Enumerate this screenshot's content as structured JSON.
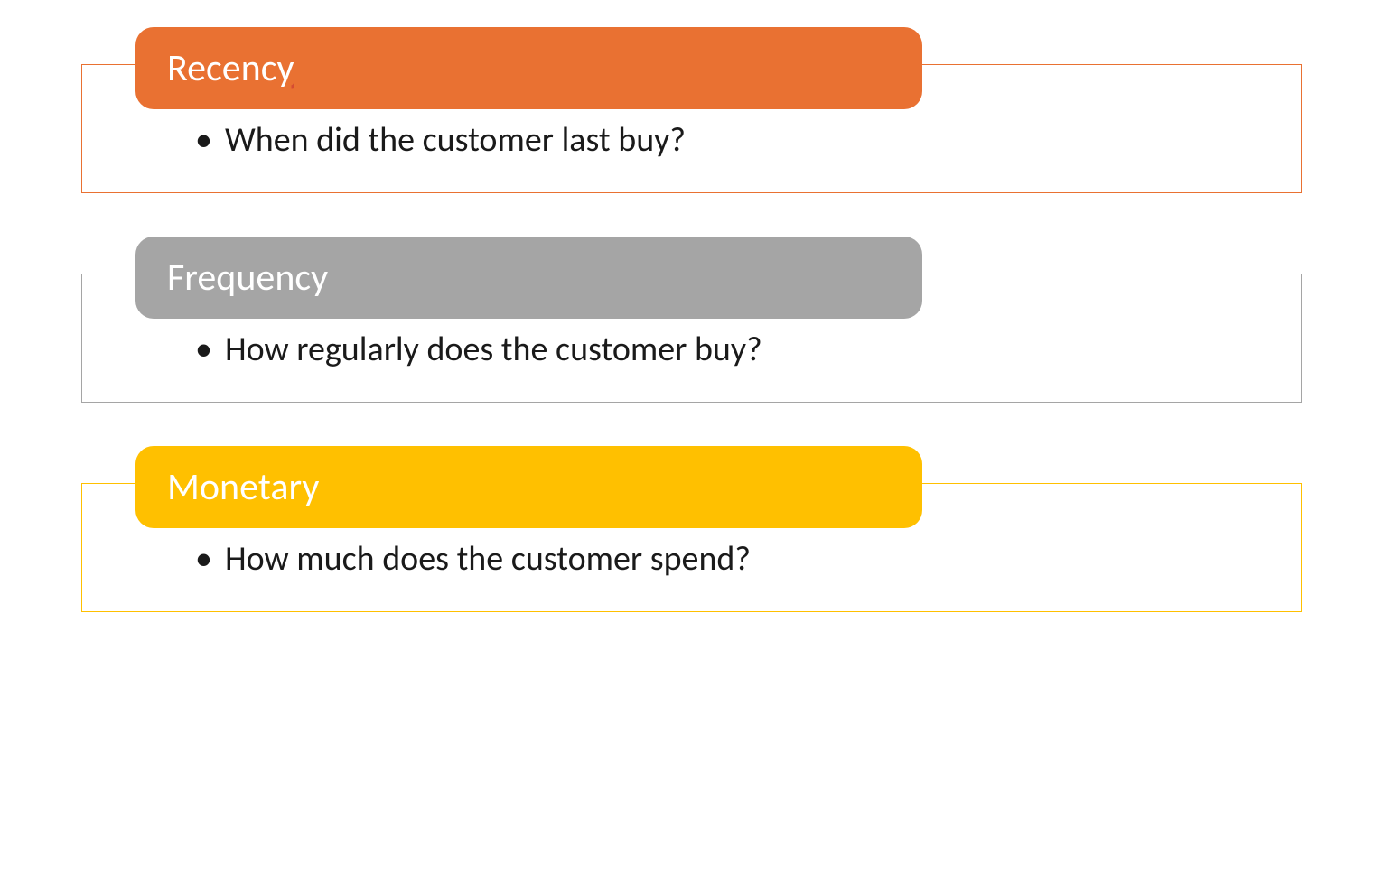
{
  "cards": [
    {
      "title": "Recency",
      "text": "When did the customer last buy?",
      "header_bg": "#E97132",
      "border_color": "#E97132",
      "title_underline": true
    },
    {
      "title": "Frequency",
      "text": "How regularly does the customer buy?",
      "header_bg": "#A5A5A5",
      "border_color": "#A5A5A5",
      "title_underline": false
    },
    {
      "title": "Monetary",
      "text": "How much does the customer spend?",
      "header_bg": "#FFC000",
      "border_color": "#FFC000",
      "title_underline": false
    }
  ],
  "layout": {
    "background": "#ffffff",
    "title_color": "#ffffff",
    "text_color": "#1a1a1a",
    "title_fontsize": 42,
    "text_fontsize": 38,
    "border_radius": 20
  }
}
